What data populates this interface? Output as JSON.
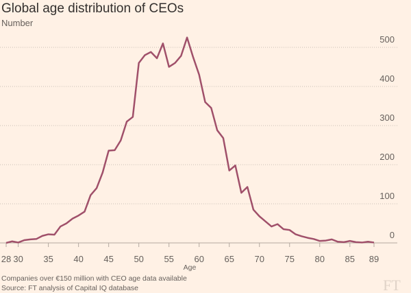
{
  "chart_data": {
    "type": "line",
    "title": "Global age distribution of CEOs",
    "subtitle": "Number",
    "x_label": "Age",
    "notes": [
      "Companies over €150 million with CEO age data available",
      "Source: FT analysis of Capital IQ database"
    ],
    "logo": "FT",
    "x": [
      28,
      29,
      30,
      31,
      32,
      33,
      34,
      35,
      36,
      37,
      38,
      39,
      40,
      41,
      42,
      43,
      44,
      45,
      46,
      47,
      48,
      49,
      50,
      51,
      52,
      53,
      54,
      55,
      56,
      57,
      58,
      59,
      60,
      61,
      62,
      63,
      64,
      65,
      66,
      67,
      68,
      69,
      70,
      71,
      72,
      73,
      74,
      75,
      76,
      77,
      78,
      79,
      80,
      81,
      82,
      83,
      84,
      85,
      86,
      87,
      88,
      89
    ],
    "series": [
      {
        "name": "CEOs",
        "color": "#a0506a",
        "values": [
          0,
          4,
          1,
          7,
          9,
          10,
          18,
          22,
          21,
          42,
          50,
          62,
          70,
          80,
          122,
          140,
          180,
          236,
          237,
          262,
          310,
          322,
          460,
          480,
          488,
          472,
          510,
          450,
          460,
          478,
          525,
          475,
          430,
          360,
          345,
          288,
          268,
          185,
          198,
          128,
          143,
          85,
          68,
          55,
          42,
          48,
          35,
          33,
          22,
          17,
          13,
          10,
          5,
          6,
          9,
          3,
          2,
          5,
          2,
          1,
          3,
          1
        ]
      }
    ],
    "xlim": [
      28,
      89
    ],
    "xticks": [
      28,
      30,
      35,
      40,
      45,
      50,
      55,
      60,
      65,
      70,
      75,
      80,
      85,
      89
    ],
    "ylim": [
      0,
      535
    ],
    "yticks": [
      0,
      100,
      200,
      300,
      400,
      500
    ],
    "grid": true
  }
}
